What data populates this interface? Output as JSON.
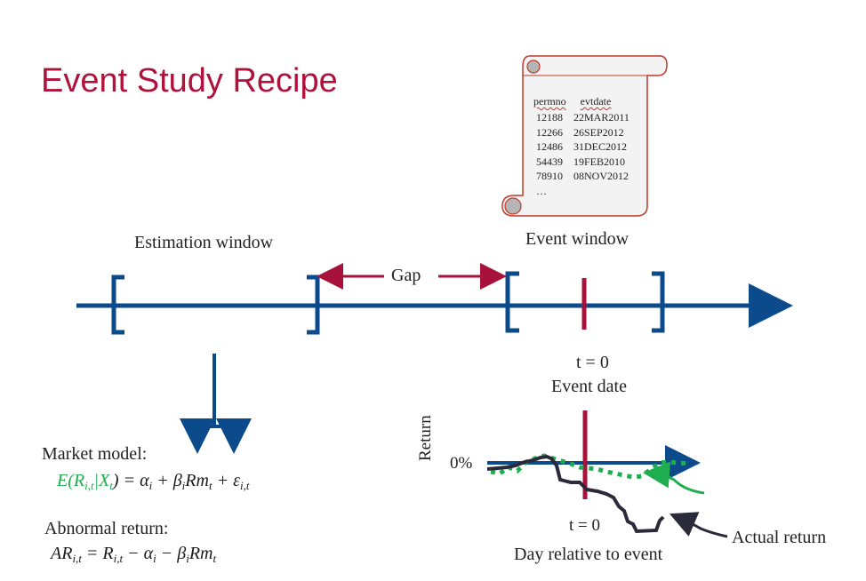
{
  "title": "Event Study Recipe",
  "scroll": {
    "header": [
      "permno",
      "evtdate"
    ],
    "rows": [
      [
        "12188",
        "22MAR2011"
      ],
      [
        "12266",
        "26SEP2012"
      ],
      [
        "12486",
        "31DEC2012"
      ],
      [
        "54439",
        "19FEB2010"
      ],
      [
        "78910",
        "08NOV2012"
      ]
    ],
    "ellipsis": "…"
  },
  "timeline": {
    "estimation_window": "Estimation window",
    "event_window": "Event window",
    "gap": "Gap",
    "t0": "t = 0",
    "event_date": "Event date"
  },
  "models": {
    "market_model_label": "Market model:",
    "market_model_eq": {
      "lhs": "E(R",
      "lhs_sub": "i,t",
      "cond": "|X",
      "cond_sub": "t",
      "rhs1": ") = α",
      "rhs1_sub": "i",
      "rhs2": " + β",
      "rhs2_sub": "i",
      "rhs3": "Rm",
      "rhs3_sub": "t",
      "rhs4": " + ε",
      "rhs4_sub": "i,t"
    },
    "abnormal_label": "Abnormal return:",
    "abnormal_eq": {
      "p1": "AR",
      "p1_sub": "i,t",
      "p2": " = R",
      "p2_sub": "i,t",
      "p3": " − α",
      "p3_sub": "i",
      "p4": " − β",
      "p4_sub": "i",
      "p5": "Rm",
      "p5_sub": "t"
    }
  },
  "mini_chart": {
    "ylabel": "Return",
    "zero_label": "0%",
    "t0_label": "t = 0",
    "xlabel": "Day relative to event",
    "actual_label": "Actual return"
  },
  "colors": {
    "title": "#b0123b",
    "axis_blue": "#0b4a8b",
    "event_red": "#a8123a",
    "green": "#1fae4f",
    "dark_line": "#2a2a3a",
    "scroll_border": "#c0392b"
  }
}
